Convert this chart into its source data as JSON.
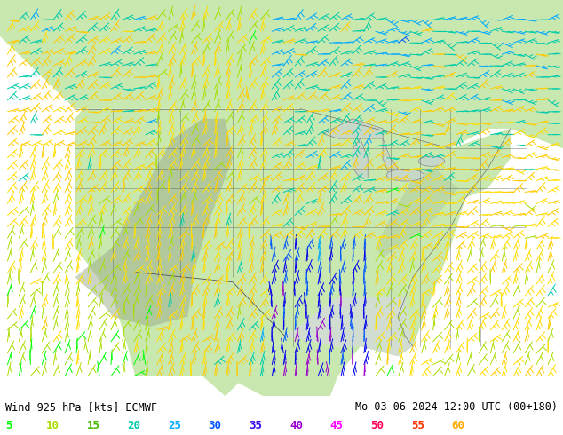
{
  "title_left": "Wind 925 hPa [kts] ECMWF",
  "title_right": "Mo 03-06-2024 12:00 UTC (00+180)",
  "legend_values": [
    5,
    10,
    15,
    20,
    25,
    30,
    35,
    40,
    45,
    50,
    55,
    60
  ],
  "legend_colors": [
    "#00ff00",
    "#aadd00",
    "#44cc00",
    "#00ccaa",
    "#00aaff",
    "#0055ff",
    "#0000ee",
    "#9900cc",
    "#ff00ff",
    "#ff0055",
    "#ff3300",
    "#ffaa00"
  ],
  "background_color": "#ffffff",
  "land_color": "#b8e8a0",
  "ocean_color": "#e8f0e8",
  "mountain_color": "#a0b090",
  "border_color": "#555555",
  "fig_width": 6.34,
  "fig_height": 4.9,
  "dpi": 100,
  "title_fontsize": 8.5,
  "legend_fontsize": 9
}
